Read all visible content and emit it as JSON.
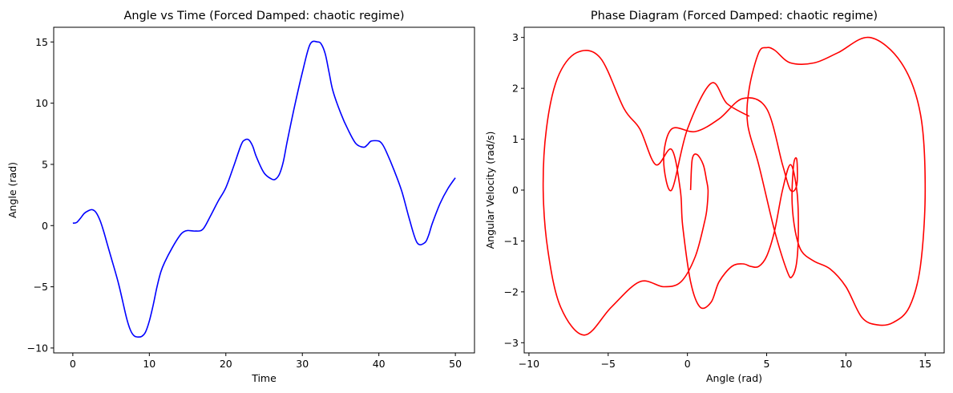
{
  "chart_data": [
    {
      "type": "line",
      "title": "Angle vs Time (Forced Damped: chaotic regime)",
      "xlabel": "Time",
      "ylabel": "Angle (rad)",
      "xlim": [
        -2.5,
        52.5
      ],
      "ylim": [
        -10.4,
        16.2
      ],
      "xticks": [
        0,
        10,
        20,
        30,
        40,
        50
      ],
      "yticks": [
        -10,
        -5,
        0,
        5,
        10,
        15
      ],
      "grid": false,
      "series": [
        {
          "color": "#0000ff",
          "x": [
            0,
            0.5,
            1,
            1.5,
            2,
            2.5,
            3,
            3.5,
            4,
            4.5,
            5,
            6,
            7,
            7.5,
            8,
            8.5,
            9,
            9.5,
            10,
            10.5,
            11,
            11.5,
            12,
            13,
            14,
            14.5,
            15,
            16,
            17,
            18,
            19,
            20,
            21,
            22,
            22.5,
            23,
            23.5,
            24,
            25,
            26,
            26.5,
            27,
            27.5,
            28,
            29,
            30,
            31,
            32,
            32.5,
            33,
            33.5,
            34,
            35,
            36,
            37,
            38,
            38.5,
            39,
            40,
            40.5,
            41,
            42,
            43,
            44,
            45,
            46,
            46.5,
            47,
            48,
            49,
            50
          ],
          "values": [
            0.2,
            0.25,
            0.6,
            1.0,
            1.2,
            1.3,
            1.1,
            0.5,
            -0.4,
            -1.5,
            -2.6,
            -4.8,
            -7.5,
            -8.5,
            -9.0,
            -9.1,
            -9.05,
            -8.7,
            -7.8,
            -6.5,
            -5.0,
            -3.8,
            -3.0,
            -1.8,
            -0.8,
            -0.5,
            -0.4,
            -0.45,
            -0.3,
            0.8,
            2.0,
            3.1,
            4.8,
            6.6,
            7.0,
            7.0,
            6.5,
            5.6,
            4.3,
            3.8,
            3.8,
            4.2,
            5.2,
            6.8,
            9.8,
            12.5,
            14.8,
            15.0,
            14.8,
            14.0,
            12.5,
            11.0,
            9.2,
            7.8,
            6.7,
            6.4,
            6.6,
            6.9,
            6.9,
            6.6,
            6.0,
            4.5,
            2.8,
            0.5,
            -1.4,
            -1.4,
            -0.8,
            0.2,
            1.8,
            3.0,
            3.9
          ]
        }
      ]
    },
    {
      "type": "line",
      "title": "Phase Diagram (Forced Damped: chaotic regime)",
      "xlabel": "Angle (rad)",
      "ylabel": "Angular Velocity (rad/s)",
      "xlim": [
        -10.3,
        16.2
      ],
      "ylim": [
        -3.2,
        3.2
      ],
      "xticks": [
        -10,
        -5,
        0,
        5,
        10,
        15
      ],
      "yticks": [
        -3,
        -2,
        -1,
        0,
        1,
        2,
        3
      ],
      "grid": false,
      "series": [
        {
          "color": "#ff0000",
          "x": [
            0.2,
            0.3,
            0.6,
            1.0,
            1.2,
            1.3,
            1.25,
            1.1,
            0.5,
            -0.4,
            -1.5,
            -3.0,
            -4.8,
            -6.5,
            -8.0,
            -8.8,
            -9.1,
            -8.9,
            -8.2,
            -7.0,
            -5.5,
            -4.0,
            -3.0,
            -2.0,
            -1.0,
            -0.45,
            -0.3,
            0.2,
            0.8,
            1.5,
            2.0,
            2.8,
            3.5,
            4.0,
            4.5,
            5.0,
            5.5,
            6.0,
            6.5,
            6.9,
            7.0,
            6.9,
            6.6,
            6.3,
            5.5,
            4.5,
            3.8,
            3.9,
            4.5,
            5.0,
            5.5,
            6.5,
            8.0,
            9.5,
            11.5,
            13.5,
            14.7,
            15.0,
            14.7,
            14.0,
            13.0,
            12.0,
            11.0,
            10.0,
            9.0,
            8.0,
            7.2,
            6.8,
            6.6,
            6.7,
            6.9,
            6.9,
            6.5,
            6.0,
            5.0,
            3.5,
            2.0,
            0.5,
            -1.0,
            -1.5,
            -1.0,
            0.0,
            1.5,
            2.5,
            3.9
          ],
          "values": [
            0.0,
            0.6,
            0.7,
            0.5,
            0.2,
            0.0,
            -0.3,
            -0.6,
            -1.3,
            -1.8,
            -1.9,
            -1.8,
            -2.3,
            -2.85,
            -2.3,
            -1.2,
            0.0,
            1.2,
            2.2,
            2.7,
            2.6,
            1.6,
            1.2,
            0.5,
            0.8,
            0.0,
            -0.7,
            -1.8,
            -2.3,
            -2.2,
            -1.8,
            -1.5,
            -1.45,
            -1.5,
            -1.5,
            -1.3,
            -0.8,
            0.0,
            0.5,
            0.0,
            -0.7,
            -1.4,
            -1.7,
            -1.6,
            -0.8,
            0.5,
            1.3,
            2.0,
            2.7,
            2.8,
            2.75,
            2.5,
            2.5,
            2.7,
            3.0,
            2.5,
            1.5,
            0.0,
            -1.5,
            -2.3,
            -2.6,
            -2.65,
            -2.5,
            -1.9,
            -1.55,
            -1.4,
            -1.2,
            -0.8,
            -0.2,
            0.5,
            0.6,
            0.1,
            0.0,
            0.5,
            1.6,
            1.8,
            1.4,
            1.15,
            1.2,
            0.6,
            0.0,
            1.2,
            2.1,
            1.7,
            1.45
          ]
        }
      ]
    }
  ]
}
